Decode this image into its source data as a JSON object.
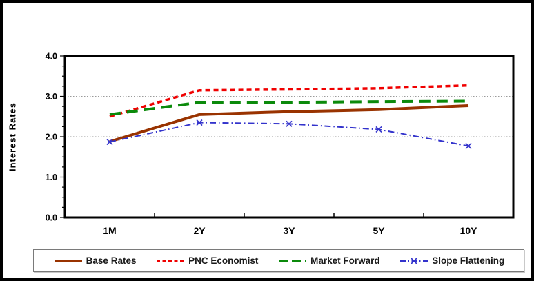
{
  "chart_data": {
    "type": "line",
    "title": "",
    "xlabel": "",
    "ylabel": "Interest Rates",
    "categories": [
      "1M",
      "2Y",
      "3Y",
      "5Y",
      "10Y"
    ],
    "ylim": [
      0.0,
      4.0
    ],
    "yticks": [
      0.0,
      1.0,
      2.0,
      3.0,
      4.0
    ],
    "ytick_labels": [
      "0.0",
      "1.0",
      "2.0",
      "3.0",
      "4.0"
    ],
    "gridlines_at": [
      1.0,
      2.0,
      3.0
    ],
    "grid": "horizontal-dotted-gray",
    "legend_position": "bottom",
    "series": [
      {
        "name": "Base Rates",
        "color": "#993300",
        "style": "solid",
        "marker": "none",
        "values": [
          1.88,
          2.55,
          2.62,
          2.67,
          2.77
        ]
      },
      {
        "name": "PNC Economist",
        "color": "#f00000",
        "style": "dashed",
        "marker": "none",
        "values": [
          2.5,
          3.15,
          3.17,
          3.2,
          3.27
        ]
      },
      {
        "name": "Market Forward",
        "color": "#0b8a0b",
        "style": "long-dash",
        "marker": "none",
        "values": [
          2.55,
          2.85,
          2.85,
          2.87,
          2.88
        ]
      },
      {
        "name": "Slope Flattening",
        "color": "#3333cc",
        "style": "dash-dot",
        "marker": "x",
        "values": [
          1.87,
          2.35,
          2.32,
          2.18,
          1.77
        ]
      }
    ]
  }
}
